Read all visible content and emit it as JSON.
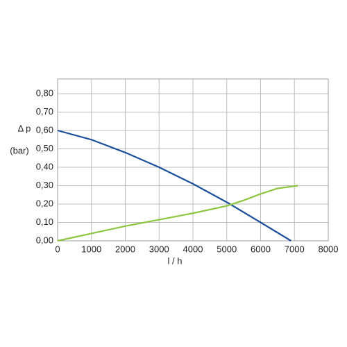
{
  "chart_data": {
    "type": "line",
    "x_label": "l / h",
    "y_label": "Δ p",
    "y_unit": "(bar)",
    "xlim": [
      0,
      8000
    ],
    "xticks": [
      0,
      1000,
      2000,
      3000,
      4000,
      5000,
      6000,
      7000,
      8000
    ],
    "ylim": [
      0,
      0.88
    ],
    "yticks": [
      {
        "value": 0,
        "label": "0,00"
      },
      {
        "value": 0.1,
        "label": "0,10"
      },
      {
        "value": 0.2,
        "label": "0,20"
      },
      {
        "value": 0.3,
        "label": "0,30"
      },
      {
        "value": 0.4,
        "label": "0,40"
      },
      {
        "value": 0.5,
        "label": "0,50"
      },
      {
        "value": 0.6,
        "label": "0,60"
      },
      {
        "value": 0.7,
        "label": "0,70"
      },
      {
        "value": 0.8,
        "label": "0,80"
      }
    ],
    "grid": true,
    "series": [
      {
        "color": "#1a4f9c",
        "x": [
          0,
          1000,
          2000,
          3000,
          4000,
          5000,
          6000,
          6900
        ],
        "values": [
          0.6,
          0.55,
          0.48,
          0.4,
          0.31,
          0.21,
          0.1,
          0.0
        ]
      },
      {
        "color": "#8cc63f",
        "x": [
          0,
          1000,
          2000,
          3000,
          4000,
          5000,
          5500,
          6000,
          6500,
          7100
        ],
        "values": [
          0.0,
          0.04,
          0.08,
          0.115,
          0.15,
          0.19,
          0.22,
          0.255,
          0.285,
          0.3
        ]
      }
    ]
  }
}
